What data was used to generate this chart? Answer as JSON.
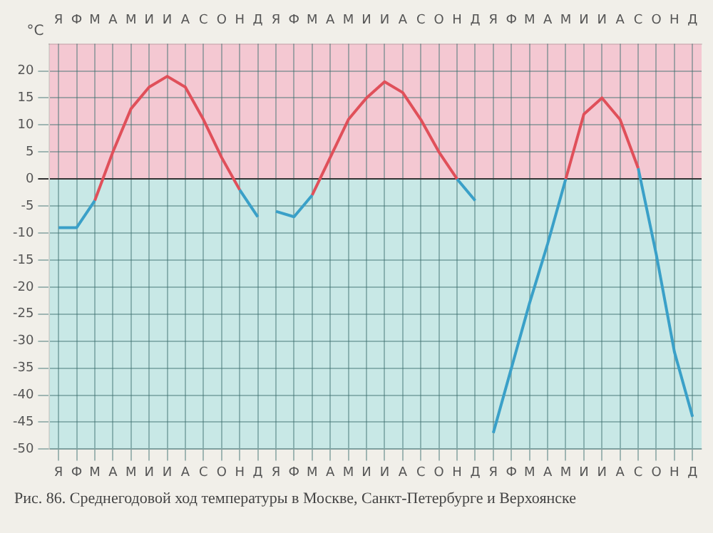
{
  "chart_data": {
    "type": "line",
    "ylabel": "°C",
    "annotations": [
      "Рис. 86. Среднегодовой ход температуры в Москве, Санкт-Петербурге и Верхоянске"
    ],
    "categories": [
      "Я",
      "Ф",
      "М",
      "А",
      "М",
      "И",
      "И",
      "А",
      "С",
      "О",
      "Н",
      "Д",
      "Я",
      "Ф",
      "М",
      "А",
      "М",
      "И",
      "И",
      "А",
      "С",
      "О",
      "Н",
      "Д",
      "Я",
      "Ф",
      "М",
      "А",
      "М",
      "И",
      "И",
      "А",
      "С",
      "О",
      "Н",
      "Д"
    ],
    "series": [
      {
        "color": "#3aa0c8",
        "values": [
          -9,
          -9,
          -4,
          null,
          null,
          null,
          null,
          null,
          null,
          null,
          null,
          null,
          null,
          null,
          null,
          null,
          null,
          null,
          null,
          null,
          null,
          null,
          null,
          null,
          null,
          null,
          null,
          null,
          null,
          null,
          null,
          null,
          null,
          null,
          null,
          null
        ]
      },
      {
        "color": "#e0505a",
        "values": [
          null,
          null,
          -4,
          5,
          13,
          17,
          19,
          17,
          11,
          4,
          -2,
          null,
          null,
          null,
          null,
          null,
          null,
          null,
          null,
          null,
          null,
          null,
          null,
          null,
          null,
          null,
          null,
          null,
          null,
          null,
          null,
          null,
          null,
          null,
          null,
          null
        ]
      },
      {
        "color": "#3aa0c8",
        "values": [
          null,
          null,
          null,
          null,
          null,
          null,
          null,
          null,
          null,
          null,
          -2,
          -7,
          null,
          null,
          null,
          null,
          null,
          null,
          null,
          null,
          null,
          null,
          null,
          null,
          null,
          null,
          null,
          null,
          null,
          null,
          null,
          null,
          null,
          null,
          null,
          null
        ]
      },
      {
        "color": "#3aa0c8",
        "values": [
          null,
          null,
          null,
          null,
          null,
          null,
          null,
          null,
          null,
          null,
          null,
          null,
          -6,
          -7,
          -3,
          null,
          null,
          null,
          null,
          null,
          null,
          null,
          null,
          null,
          null,
          null,
          null,
          null,
          null,
          null,
          null,
          null,
          null,
          null,
          null,
          null
        ]
      },
      {
        "color": "#e0505a",
        "values": [
          null,
          null,
          null,
          null,
          null,
          null,
          null,
          null,
          null,
          null,
          null,
          null,
          null,
          null,
          -3,
          4,
          11,
          15,
          18,
          16,
          11,
          5,
          0,
          null,
          null,
          null,
          null,
          null,
          null,
          null,
          null,
          null,
          null,
          null,
          null,
          null
        ]
      },
      {
        "color": "#3aa0c8",
        "values": [
          null,
          null,
          null,
          null,
          null,
          null,
          null,
          null,
          null,
          null,
          null,
          null,
          null,
          null,
          null,
          null,
          null,
          null,
          null,
          null,
          null,
          null,
          0,
          -4,
          null,
          null,
          null,
          null,
          null,
          null,
          null,
          null,
          null,
          null,
          null,
          null
        ]
      },
      {
        "color": "#3aa0c8",
        "values": [
          null,
          null,
          null,
          null,
          null,
          null,
          null,
          null,
          null,
          null,
          null,
          null,
          null,
          null,
          null,
          null,
          null,
          null,
          null,
          null,
          null,
          null,
          null,
          null,
          -47,
          -35,
          -23,
          -12,
          0,
          null,
          null,
          null,
          null,
          null,
          null,
          null
        ]
      },
      {
        "color": "#e0505a",
        "values": [
          null,
          null,
          null,
          null,
          null,
          null,
          null,
          null,
          null,
          null,
          null,
          null,
          null,
          null,
          null,
          null,
          null,
          null,
          null,
          null,
          null,
          null,
          null,
          null,
          null,
          null,
          null,
          null,
          0,
          12,
          15,
          11,
          2,
          null,
          null,
          null
        ]
      },
      {
        "color": "#3aa0c8",
        "values": [
          null,
          null,
          null,
          null,
          null,
          null,
          null,
          null,
          null,
          null,
          null,
          null,
          null,
          null,
          null,
          null,
          null,
          null,
          null,
          null,
          null,
          null,
          null,
          null,
          null,
          null,
          null,
          null,
          null,
          null,
          null,
          null,
          2,
          -14,
          -32,
          -44
        ]
      }
    ],
    "ylim": [
      -50,
      25
    ],
    "yticks": [
      -50,
      -45,
      -40,
      -35,
      -30,
      -25,
      -20,
      -15,
      -10,
      -5,
      0,
      5,
      10,
      15,
      20
    ],
    "bands": [
      {
        "axis": "y",
        "from": 0,
        "to": 25,
        "color": "#f4c8d2"
      },
      {
        "axis": "y",
        "from": -50,
        "to": 0,
        "color": "#c8e8e6"
      }
    ],
    "grid": true,
    "legend": false,
    "marker": "none",
    "line_style": "solid"
  }
}
